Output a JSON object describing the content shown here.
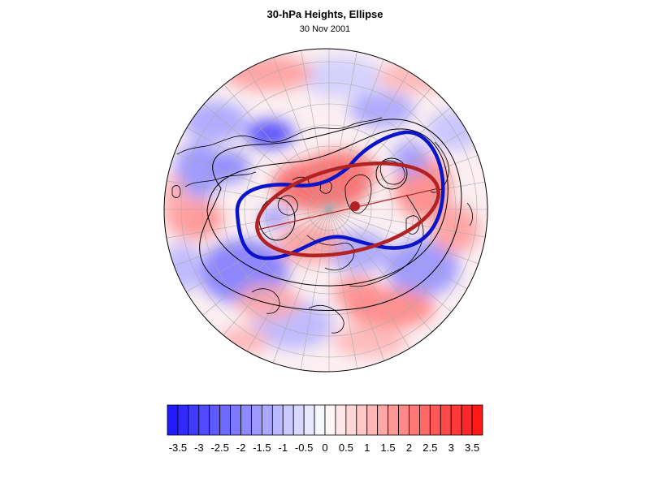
{
  "title": "30-hPa Heights, Ellipse",
  "date": "30 Nov 2001",
  "colorbar": {
    "tick_labels": [
      "-3.5",
      "-3",
      "-2.5",
      "-2",
      "-1.5",
      "-1",
      "-0.5",
      "0",
      "0.5",
      "1",
      "1.5",
      "2",
      "2.5",
      "3",
      "3.5"
    ],
    "min": -3.75,
    "max": 3.75,
    "step": 0.25,
    "colors": {
      "negative_end": "#1a12ff",
      "neutral": "#ffffff",
      "positive_end": "#ff1010"
    }
  },
  "overlay_colors": {
    "vortex_edge": "#0a14c8",
    "ellipse": "#b22222",
    "contours": "#000000",
    "coastlines": "#000000",
    "gridlines": "#aaaaaa"
  },
  "projection": "polar stereographic (north pole)"
}
